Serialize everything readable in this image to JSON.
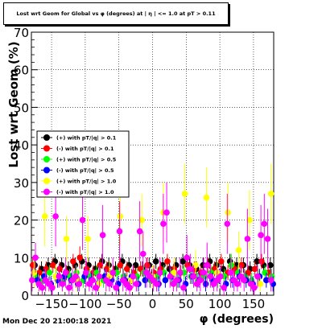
{
  "title": "Lost wrt Geom for Global vs φ (degrees) at | η | <= 1.0 at pT > 0.11",
  "timestamp": "Mon Dec 20 21:00:18 2021",
  "colors": {
    "pos_0p1": "#000000",
    "neg_0p1": "#ff0000",
    "pos_0p5": "#00ff00",
    "neg_0p5": "#0000ff",
    "pos_1p0": "#ffff00",
    "neg_1p0": "#ff00ff"
  },
  "chart_data": {
    "type": "scatter",
    "xlabel": "φ (degrees)",
    "ylabel": "Lost wrt Geom (%)",
    "xlim": [
      -180,
      180
    ],
    "ylim": [
      0,
      70
    ],
    "x_ticks": [
      -150,
      -100,
      -50,
      0,
      50,
      100,
      150
    ],
    "x_tick_labels": [
      "−150",
      "−100",
      "−50",
      "0",
      "50",
      "100",
      "150"
    ],
    "y_ticks": [
      0,
      10,
      20,
      30,
      40,
      50,
      60,
      70
    ],
    "grid": true,
    "legend_position": "center-left",
    "series": [
      {
        "name": "(+) with pT/|q| > 0.1",
        "color": "#000000",
        "x": [
          -175,
          -165,
          -155,
          -145,
          -135,
          -125,
          -115,
          -105,
          -95,
          -85,
          -75,
          -65,
          -55,
          -45,
          -35,
          -25,
          -15,
          -5,
          5,
          15,
          25,
          35,
          45,
          55,
          65,
          75,
          85,
          95,
          105,
          115,
          125,
          135,
          145,
          155,
          165,
          175
        ],
        "y": [
          8,
          7,
          8,
          9,
          8,
          7,
          8,
          9,
          8,
          7,
          9,
          8,
          7,
          9,
          8,
          8,
          7,
          8,
          9,
          8,
          7,
          8,
          9,
          8,
          7,
          8,
          9,
          8,
          7,
          9,
          8,
          8,
          7,
          9,
          8,
          8
        ],
        "err": [
          2,
          2,
          2,
          2,
          2,
          2,
          2,
          2,
          2,
          2,
          2,
          2,
          2,
          2,
          2,
          2,
          2,
          2,
          2,
          2,
          2,
          2,
          2,
          2,
          2,
          2,
          2,
          2,
          2,
          2,
          2,
          2,
          2,
          2,
          2,
          2
        ]
      },
      {
        "name": "(-) with pT/|q| > 0.1",
        "color": "#ff0000",
        "x": [
          -178,
          -168,
          -158,
          -148,
          -138,
          -128,
          -118,
          -108,
          -98,
          -88,
          -78,
          -68,
          -58,
          -48,
          -38,
          -28,
          -18,
          -8,
          2,
          12,
          22,
          32,
          42,
          52,
          62,
          72,
          82,
          92,
          102,
          112,
          122,
          132,
          142,
          152,
          162,
          172
        ],
        "y": [
          8,
          6,
          7,
          8,
          7,
          6,
          9,
          10,
          7,
          6,
          8,
          7,
          6,
          8,
          7,
          6,
          7,
          8,
          6,
          7,
          9,
          7,
          6,
          8,
          7,
          6,
          8,
          7,
          9,
          6,
          7,
          8,
          6,
          7,
          9,
          6
        ],
        "err": [
          2,
          2,
          2,
          2,
          2,
          2,
          2,
          3,
          2,
          2,
          2,
          2,
          2,
          2,
          2,
          2,
          2,
          2,
          2,
          2,
          2,
          2,
          2,
          2,
          2,
          2,
          2,
          2,
          2,
          2,
          2,
          2,
          2,
          2,
          2,
          2
        ]
      },
      {
        "name": "(+) with pT/|q| > 0.5",
        "color": "#00ff00",
        "x": [
          -173,
          -163,
          -153,
          -143,
          -133,
          -123,
          -113,
          -103,
          -93,
          -83,
          -73,
          -63,
          -53,
          -43,
          -33,
          -23,
          -13,
          -3,
          7,
          17,
          27,
          37,
          47,
          57,
          67,
          77,
          87,
          97,
          107,
          117,
          127,
          137,
          147,
          157,
          167,
          177
        ],
        "y": [
          5,
          4,
          6,
          5,
          4,
          5,
          6,
          4,
          5,
          6,
          4,
          5,
          6,
          5,
          4,
          5,
          6,
          4,
          5,
          6,
          5,
          4,
          6,
          5,
          4,
          5,
          6,
          4,
          5,
          8,
          6,
          5,
          4,
          5,
          6,
          5
        ],
        "err": [
          2,
          2,
          2,
          2,
          2,
          2,
          2,
          2,
          2,
          2,
          2,
          2,
          2,
          2,
          2,
          2,
          2,
          2,
          2,
          2,
          2,
          2,
          2,
          2,
          2,
          2,
          2,
          2,
          2,
          3,
          2,
          2,
          2,
          2,
          2,
          2
        ]
      },
      {
        "name": "(-) with pT/|q| > 0.5",
        "color": "#0000ff",
        "x": [
          -171,
          -161,
          -151,
          -141,
          -131,
          -121,
          -111,
          -101,
          -91,
          -81,
          -71,
          -61,
          -51,
          -41,
          -31,
          -21,
          -11,
          -1,
          9,
          19,
          29,
          39,
          49,
          59,
          69,
          79,
          89,
          99,
          109,
          119,
          129,
          139,
          149,
          159,
          169,
          179
        ],
        "y": [
          4,
          5,
          3,
          4,
          5,
          4,
          3,
          5,
          4,
          3,
          5,
          4,
          3,
          4,
          5,
          3,
          4,
          5,
          3,
          4,
          5,
          4,
          3,
          5,
          4,
          3,
          4,
          5,
          3,
          4,
          5,
          4,
          3,
          5,
          4,
          3
        ],
        "err": [
          2,
          2,
          2,
          2,
          2,
          2,
          2,
          2,
          2,
          2,
          2,
          2,
          2,
          2,
          2,
          2,
          2,
          2,
          2,
          2,
          2,
          2,
          2,
          2,
          2,
          2,
          2,
          2,
          2,
          2,
          2,
          2,
          2,
          2,
          2,
          2
        ]
      },
      {
        "name": "(+) with pT/|q| > 1.0",
        "color": "#ffff00",
        "x": [
          -176,
          -160,
          -144,
          -128,
          -112,
          -96,
          -80,
          -64,
          -48,
          -32,
          -16,
          0,
          16,
          32,
          48,
          64,
          80,
          96,
          112,
          128,
          144,
          160,
          176
        ],
        "y": [
          6,
          21,
          5,
          15,
          4,
          15,
          3,
          5,
          21,
          4,
          20,
          5,
          22,
          6,
          27,
          8,
          26,
          6,
          22,
          12,
          20,
          3,
          27
        ],
        "err": [
          4,
          8,
          3,
          6,
          3,
          6,
          2,
          4,
          8,
          3,
          7,
          3,
          8,
          4,
          8,
          4,
          8,
          3,
          8,
          5,
          8,
          2,
          8
        ]
      },
      {
        "name": "(-) with pT/|q| > 1.0",
        "color": "#ff00ff",
        "x": [
          -179,
          -174,
          -169,
          -164,
          -159,
          -154,
          -149,
          -144,
          -139,
          -134,
          -129,
          -124,
          -119,
          -114,
          -109,
          -104,
          -99,
          -94,
          -89,
          -84,
          -79,
          -74,
          -69,
          -64,
          -59,
          -54,
          -49,
          -44,
          -39,
          -34,
          -29,
          -24,
          -19,
          -14,
          -9,
          -4,
          1,
          6,
          11,
          16,
          21,
          26,
          31,
          36,
          41,
          46,
          51,
          56,
          61,
          66,
          71,
          76,
          81,
          86,
          91,
          96,
          101,
          106,
          111,
          116,
          121,
          126,
          131,
          136,
          141,
          146,
          151,
          156,
          161,
          166,
          171,
          176
        ],
        "y": [
          4,
          10,
          3,
          2,
          4,
          3,
          2,
          21,
          5,
          3,
          6,
          2,
          4,
          5,
          3,
          20,
          6,
          3,
          4,
          2,
          5,
          16,
          4,
          3,
          6,
          2,
          17,
          4,
          3,
          2,
          5,
          3,
          17,
          11,
          6,
          5,
          4,
          3,
          6,
          19,
          22,
          5,
          3,
          4,
          6,
          2,
          10,
          7,
          5,
          3,
          4,
          6,
          8,
          5,
          3,
          4,
          5,
          2,
          19,
          6,
          4,
          3,
          5,
          4,
          15,
          3,
          2,
          5,
          16,
          19,
          15,
          4
        ],
        "err": [
          3,
          4,
          2,
          2,
          3,
          2,
          2,
          8,
          3,
          2,
          4,
          2,
          3,
          3,
          2,
          8,
          4,
          2,
          3,
          2,
          3,
          8,
          3,
          2,
          4,
          2,
          8,
          3,
          2,
          2,
          3,
          2,
          8,
          6,
          4,
          3,
          3,
          2,
          4,
          8,
          8,
          3,
          2,
          3,
          4,
          2,
          6,
          4,
          3,
          2,
          3,
          4,
          6,
          3,
          2,
          3,
          3,
          2,
          8,
          4,
          3,
          2,
          3,
          3,
          8,
          2,
          2,
          3,
          8,
          8,
          8,
          3
        ]
      }
    ]
  }
}
